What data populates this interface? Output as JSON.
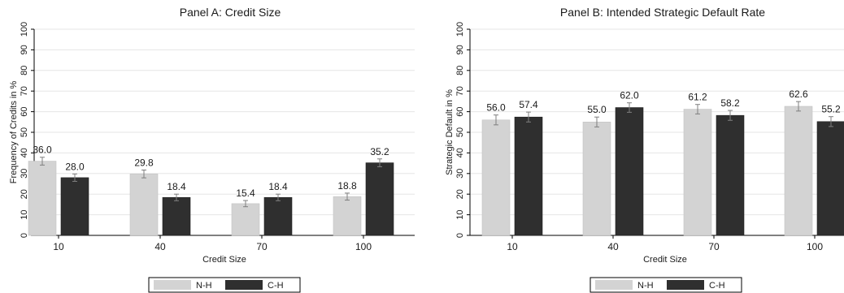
{
  "colors": {
    "nh_fill": "#d3d3d3",
    "ch_fill": "#2f2f2f",
    "gridline": "#e6e6e6",
    "axis": "#000000",
    "error_bar": "#7f7f7f"
  },
  "chart_data": [
    {
      "type": "bar",
      "title": "Panel A: Credit Size",
      "xlabel": "Credit Size",
      "ylabel": "Frequency of Credits in %",
      "ylim": [
        0,
        100
      ],
      "yticks": [
        "0",
        "10",
        "20",
        "30",
        "40",
        "50",
        "60",
        "70",
        "80",
        "90",
        "100"
      ],
      "grid": true,
      "legend_position": "bottom",
      "categories": [
        "10",
        "40",
        "70",
        "100"
      ],
      "series": [
        {
          "name": "N-H",
          "values": [
            36.0,
            29.8,
            15.4,
            18.8
          ],
          "labels": [
            "36.0",
            "29.8",
            "15.4",
            "18.8"
          ],
          "error": [
            1.9,
            1.9,
            1.5,
            1.7
          ]
        },
        {
          "name": "C-H",
          "values": [
            28.0,
            18.4,
            18.4,
            35.2
          ],
          "labels": [
            "28.0",
            "18.4",
            "18.4",
            "35.2"
          ],
          "error": [
            1.8,
            1.6,
            1.6,
            1.9
          ]
        }
      ]
    },
    {
      "type": "bar",
      "title": "Panel B: Intended Strategic Default Rate",
      "xlabel": "Credit Size",
      "ylabel": "Strategic Default in %",
      "ylim": [
        0,
        100
      ],
      "yticks": [
        "0",
        "10",
        "20",
        "30",
        "40",
        "50",
        "60",
        "70",
        "80",
        "90",
        "100"
      ],
      "grid": true,
      "legend_position": "bottom",
      "categories": [
        "10",
        "40",
        "70",
        "100"
      ],
      "series": [
        {
          "name": "N-H",
          "values": [
            56.0,
            55.0,
            61.2,
            62.6
          ],
          "labels": [
            "56.0",
            "55.0",
            "61.2",
            "62.6"
          ],
          "error": [
            2.4,
            2.4,
            2.3,
            2.3
          ]
        },
        {
          "name": "C-H",
          "values": [
            57.4,
            62.0,
            58.2,
            55.2
          ],
          "labels": [
            "57.4",
            "62.0",
            "58.2",
            "55.2"
          ],
          "error": [
            2.4,
            2.3,
            2.4,
            2.4
          ]
        }
      ]
    }
  ]
}
